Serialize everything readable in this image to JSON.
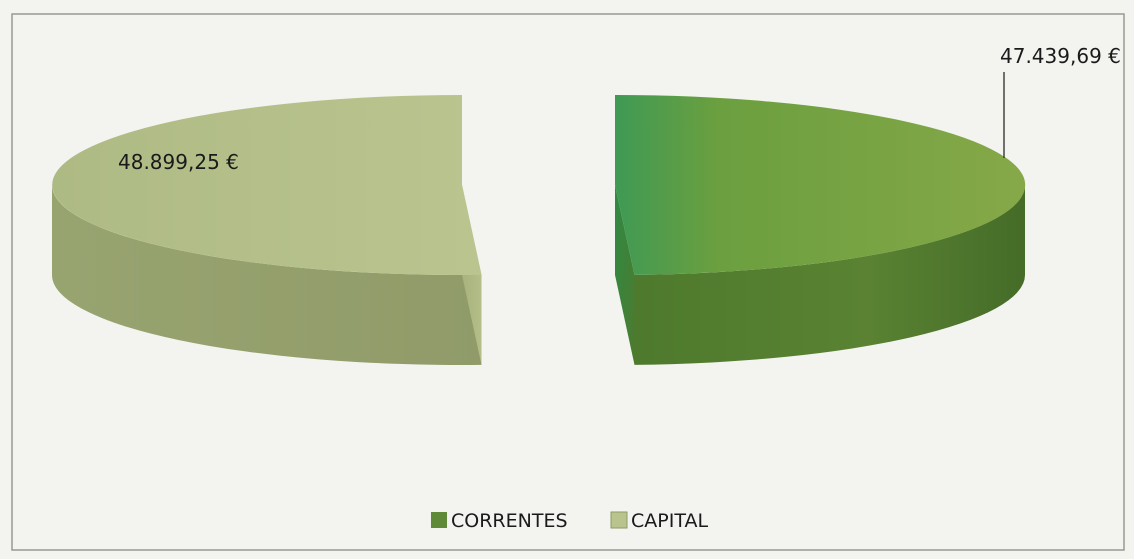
{
  "chart_data": {
    "type": "pie",
    "style": "3d-exploded",
    "categories": [
      "CORRENTES",
      "CAPITAL"
    ],
    "values": [
      47439.69,
      48899.25
    ],
    "data_labels": [
      "47.439,69 €",
      "48.899,25 €"
    ],
    "colors": {
      "CORRENTES": "#6f9a3c",
      "CAPITAL": "#b9c48c"
    },
    "legend": {
      "position": "bottom",
      "items": [
        {
          "label": "CORRENTES",
          "color": "#5f8a37"
        },
        {
          "label": "CAPITAL",
          "color": "#b9c48c"
        }
      ]
    }
  }
}
